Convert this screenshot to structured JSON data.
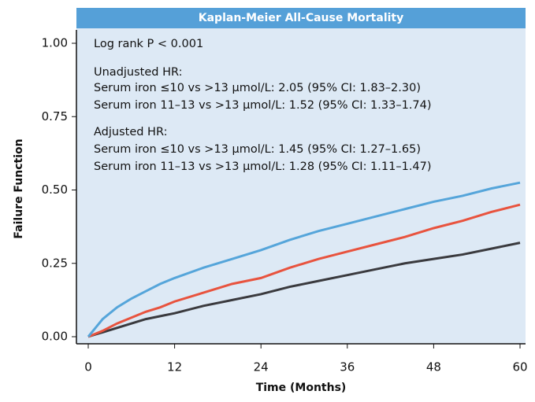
{
  "chart_data": {
    "type": "line",
    "title": "Kaplan-Meier All-Cause Mortality",
    "x_label": "Time (Months)",
    "y_label": "Failure Function",
    "annotations": [
      "Log rank P < 0.001",
      "Unadjusted HR:",
      "Serum iron ≤10 vs >13 μmol/L: 2.05 (95% CI: 1.83–2.30)",
      "Serum iron 11–13 vs >13 μmol/L: 1.52 (95% CI: 1.33–1.74)",
      "Adjusted HR:",
      "Serum iron ≤10 vs >13 μmol/L: 1.45 (95% CI: 1.27–1.65)",
      "Serum iron 11–13 vs >13 μmol/L: 1.28 (95% CI: 1.11–1.47)"
    ],
    "x": [
      0,
      1,
      2,
      4,
      6,
      8,
      10,
      12,
      16,
      20,
      24,
      28,
      32,
      36,
      40,
      44,
      48,
      52,
      56,
      60
    ],
    "series": [
      {
        "color": "#55a5da",
        "values": [
          0,
          0.03,
          0.06,
          0.1,
          0.13,
          0.155,
          0.18,
          0.2,
          0.235,
          0.265,
          0.295,
          0.33,
          0.36,
          0.385,
          0.41,
          0.435,
          0.46,
          0.48,
          0.505,
          0.525
        ]
      },
      {
        "color": "#e8533e",
        "values": [
          0,
          0.01,
          0.02,
          0.045,
          0.065,
          0.085,
          0.1,
          0.12,
          0.15,
          0.18,
          0.2,
          0.235,
          0.265,
          0.29,
          0.315,
          0.34,
          0.37,
          0.395,
          0.425,
          0.45
        ]
      },
      {
        "color": "#3a3a3e",
        "values": [
          0,
          0.008,
          0.015,
          0.03,
          0.045,
          0.06,
          0.07,
          0.08,
          0.105,
          0.125,
          0.145,
          0.17,
          0.19,
          0.21,
          0.23,
          0.25,
          0.265,
          0.28,
          0.3,
          0.32
        ]
      }
    ],
    "xlim": [
      0,
      60
    ],
    "xticks": [
      0,
      12,
      24,
      36,
      48,
      60
    ],
    "ylim": [
      0,
      1
    ],
    "yticks": [
      {
        "value": 0,
        "label": "0.00"
      },
      {
        "value": 0.25,
        "label": "0.25"
      },
      {
        "value": 0.5,
        "label": "0.50"
      },
      {
        "value": 0.75,
        "label": "0.75"
      },
      {
        "value": 1,
        "label": "1.00"
      }
    ]
  }
}
